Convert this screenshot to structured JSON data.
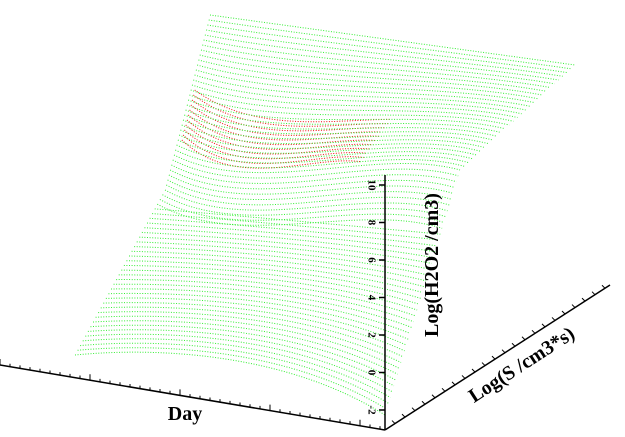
{
  "chart_data": {
    "type": "surface3d",
    "x_label": "Day",
    "y_label": "Log(S /cm3*s)",
    "z_label": "Log(H2O2  /cm3)",
    "zlim": [
      -2,
      10
    ],
    "zticks": [
      10,
      8,
      6,
      4,
      2,
      0,
      -2
    ],
    "colors": [
      "#33ee33",
      "#ee1111"
    ]
  }
}
